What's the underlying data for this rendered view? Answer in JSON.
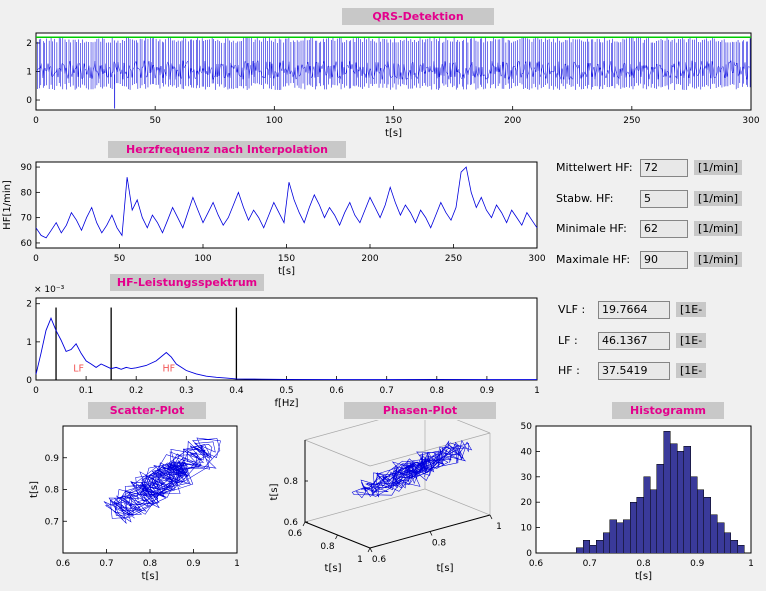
{
  "app": {
    "figure_bg": "#f0f0f0",
    "label_bg": "#c8c8c8",
    "field_bg": "#e8e8e8",
    "title_color": "#e4008c",
    "plot_blue": "#0000dd",
    "threshold_green": "#00cc00",
    "hist_fill": "#3a3a9a"
  },
  "panels": {
    "qrs": {
      "title": "QRS-Detektion"
    },
    "hr": {
      "title": "Herzfrequenz nach Interpolation"
    },
    "spectrum": {
      "title": "HF-Leistungsspektrum"
    },
    "scatter": {
      "title": "Scatter-Plot"
    },
    "phase": {
      "title": "Phasen-Plot"
    },
    "hist": {
      "title": "Histogramm"
    }
  },
  "stats": {
    "rows": [
      {
        "label": "Mittelwert HF:",
        "value": "72",
        "unit": "[1/min]"
      },
      {
        "label": "Stabw. HF:",
        "value": "5",
        "unit": "[1/min]"
      },
      {
        "label": "Minimale HF:",
        "value": "62",
        "unit": "[1/min]"
      },
      {
        "label": "Maximale HF:",
        "value": "90",
        "unit": "[1/min]"
      }
    ]
  },
  "bands": {
    "rows": [
      {
        "label": "VLF :",
        "value": "19.7664",
        "unit": "[1E-"
      },
      {
        "label": "LF :",
        "value": "46.1367",
        "unit": "[1E-"
      },
      {
        "label": "HF :",
        "value": "37.5419",
        "unit": "[1E-"
      }
    ]
  },
  "chart_data": [
    {
      "id": "qrs",
      "type": "line",
      "title": "QRS-Detektion",
      "xlabel": "t[s]",
      "xlim": [
        0,
        300
      ],
      "xticks": [
        0,
        50,
        100,
        150,
        200,
        250,
        300
      ],
      "xtick_labels": [
        "0",
        "50",
        "100",
        "150",
        "200",
        "250",
        "300"
      ],
      "ylim": [
        -0.35,
        2.35
      ],
      "yticks": [
        0,
        1,
        2
      ],
      "ytick_labels": [
        "0",
        "1",
        "2"
      ],
      "line_color": "#0000dd",
      "threshold": {
        "value": 2.2,
        "color": "#00cc00"
      },
      "signal": {
        "kind": "ecg-estimated",
        "duration_s": 300,
        "beats": 360,
        "noise_band": [
          0.72,
          1.38
        ],
        "r_peak_range": [
          2.0,
          2.2
        ],
        "s_trough_range": [
          0.35,
          0.6
        ],
        "outlier": {
          "t": 33,
          "from": 0.9,
          "to": -0.3
        },
        "seed": 11
      }
    },
    {
      "id": "hr",
      "type": "line",
      "title": "Herzfrequenz nach Interpolation",
      "xlabel": "t[s]",
      "ylabel": "HF[1/min]",
      "xlim": [
        0,
        300
      ],
      "xticks": [
        0,
        50,
        100,
        150,
        200,
        250,
        300
      ],
      "xtick_labels": [
        "0",
        "50",
        "100",
        "150",
        "200",
        "250",
        "300"
      ],
      "ylim": [
        58,
        92
      ],
      "yticks": [
        60,
        70,
        80,
        90
      ],
      "ytick_labels": [
        "60",
        "70",
        "80",
        "90"
      ],
      "line_color": "#0000dd",
      "x_end": 300,
      "values": [
        66,
        63,
        62,
        65,
        68,
        64,
        67,
        72,
        69,
        65,
        70,
        74,
        68,
        64,
        67,
        71,
        66,
        63,
        86,
        73,
        77,
        70,
        66,
        71,
        68,
        64,
        69,
        74,
        70,
        66,
        72,
        78,
        73,
        68,
        72,
        76,
        71,
        67,
        70,
        75,
        80,
        74,
        69,
        73,
        70,
        66,
        71,
        76,
        72,
        68,
        84,
        77,
        72,
        68,
        74,
        79,
        75,
        70,
        74,
        71,
        67,
        72,
        76,
        71,
        68,
        73,
        78,
        74,
        70,
        75,
        82,
        76,
        71,
        75,
        72,
        68,
        73,
        70,
        66,
        71,
        76,
        72,
        69,
        74,
        88,
        90,
        80,
        74,
        78,
        73,
        70,
        75,
        72,
        68,
        73,
        70,
        67,
        72,
        69,
        66
      ]
    },
    {
      "id": "spectrum",
      "type": "line",
      "title": "HF-Leistungsspektrum",
      "xlabel": "f[Hz]",
      "y_scale_label": "× 10⁻³",
      "xlim": [
        0,
        1
      ],
      "xticks": [
        0,
        0.1,
        0.2,
        0.3,
        0.4,
        0.5,
        0.6,
        0.7,
        0.8,
        0.9,
        1
      ],
      "xtick_labels": [
        "0",
        "0.1",
        "0.2",
        "0.3",
        "0.4",
        "0.5",
        "0.6",
        "0.7",
        "0.8",
        "0.9",
        "1"
      ],
      "ylim": [
        0,
        2.15
      ],
      "yticks": [
        0,
        1,
        2
      ],
      "ytick_labels": [
        "0",
        "1",
        "2"
      ],
      "line_color": "#0000dd",
      "points_milli": [
        [
          0,
          0.15
        ],
        [
          0.01,
          0.7
        ],
        [
          0.02,
          1.3
        ],
        [
          0.03,
          1.62
        ],
        [
          0.04,
          1.3
        ],
        [
          0.05,
          1.05
        ],
        [
          0.06,
          0.75
        ],
        [
          0.07,
          0.8
        ],
        [
          0.08,
          0.95
        ],
        [
          0.09,
          0.7
        ],
        [
          0.1,
          0.5
        ],
        [
          0.11,
          0.42
        ],
        [
          0.12,
          0.33
        ],
        [
          0.13,
          0.42
        ],
        [
          0.14,
          0.36
        ],
        [
          0.15,
          0.3
        ],
        [
          0.16,
          0.33
        ],
        [
          0.17,
          0.28
        ],
        [
          0.18,
          0.33
        ],
        [
          0.19,
          0.3
        ],
        [
          0.2,
          0.32
        ],
        [
          0.22,
          0.38
        ],
        [
          0.24,
          0.5
        ],
        [
          0.26,
          0.72
        ],
        [
          0.27,
          0.6
        ],
        [
          0.28,
          0.42
        ],
        [
          0.3,
          0.25
        ],
        [
          0.32,
          0.16
        ],
        [
          0.34,
          0.1
        ],
        [
          0.36,
          0.07
        ],
        [
          0.38,
          0.05
        ],
        [
          0.4,
          0.03
        ],
        [
          0.45,
          0.02
        ],
        [
          0.5,
          0.015
        ],
        [
          0.6,
          0.01
        ],
        [
          0.7,
          0.01
        ],
        [
          0.8,
          0.015
        ],
        [
          0.9,
          0.01
        ],
        [
          1,
          0.01
        ]
      ],
      "band_lines": {
        "values": [
          0.04,
          0.15,
          0.4
        ],
        "top_milli": 1.9,
        "color": "#000000"
      },
      "band_labels": [
        {
          "text": "LF",
          "f": 0.085,
          "milli": 0.22
        },
        {
          "text": "HF",
          "f": 0.265,
          "milli": 0.22
        }
      ],
      "band_label_color": "#f25555"
    },
    {
      "id": "scatter",
      "type": "scatter-line",
      "title": "Scatter-Plot",
      "xlabel": "t[s]",
      "ylabel": "t[s]",
      "xlim": [
        0.6,
        1
      ],
      "ylim": [
        0.6,
        1
      ],
      "xticks": [
        0.6,
        0.7,
        0.8,
        0.9,
        1
      ],
      "xtick_labels": [
        "0.6",
        "0.7",
        "0.8",
        "0.9",
        "1"
      ],
      "yticks": [
        0.7,
        0.8,
        0.9
      ],
      "ytick_labels": [
        "0.7",
        "0.8",
        "0.9"
      ],
      "line_color": "#0000dd",
      "rr_estimate": {
        "n": 330,
        "mean_s": 0.833,
        "amp1": 0.06,
        "amp2": 0.045,
        "noise": 0.08,
        "clip": [
          0.645,
          0.965
        ],
        "seed": 5
      }
    },
    {
      "id": "phase",
      "type": "line3d",
      "title": "Phasen-Plot",
      "xlabel": "t[s]",
      "ylabel": "t[s]",
      "zlabel": "t[s]",
      "lim": [
        0.6,
        1
      ],
      "axis_tick_labels": [
        "0.6",
        "0.8",
        "1"
      ],
      "z_tick_labels": [
        "0.6",
        "0.8"
      ],
      "line_color": "#0000dd",
      "rr_estimate": {
        "n": 330,
        "mean_s": 0.833,
        "amp1": 0.06,
        "amp2": 0.045,
        "noise": 0.08,
        "clip": [
          0.645,
          0.965
        ],
        "seed": 9
      }
    },
    {
      "id": "hist",
      "type": "bar",
      "title": "Histogramm",
      "xlabel": "t[s]",
      "xlim": [
        0.6,
        1
      ],
      "xticks": [
        0.6,
        0.7,
        0.8,
        0.9,
        1
      ],
      "xtick_labels": [
        "0.6",
        "0.7",
        "0.8",
        "0.9",
        "1"
      ],
      "ylim": [
        0,
        50
      ],
      "yticks": [
        0,
        10,
        20,
        30,
        40,
        50
      ],
      "ytick_labels": [
        "0",
        "10",
        "20",
        "30",
        "40",
        "50"
      ],
      "bin_start": 0.6,
      "bin_width": 0.0125,
      "counts": [
        0,
        0,
        0,
        0,
        0,
        0,
        2,
        5,
        3,
        5,
        8,
        13,
        12,
        13,
        20,
        22,
        30,
        25,
        35,
        48,
        43,
        40,
        42,
        30,
        25,
        22,
        15,
        12,
        8,
        5,
        3,
        0
      ],
      "fill": "#3a3a9a",
      "edge": "#000000"
    }
  ]
}
